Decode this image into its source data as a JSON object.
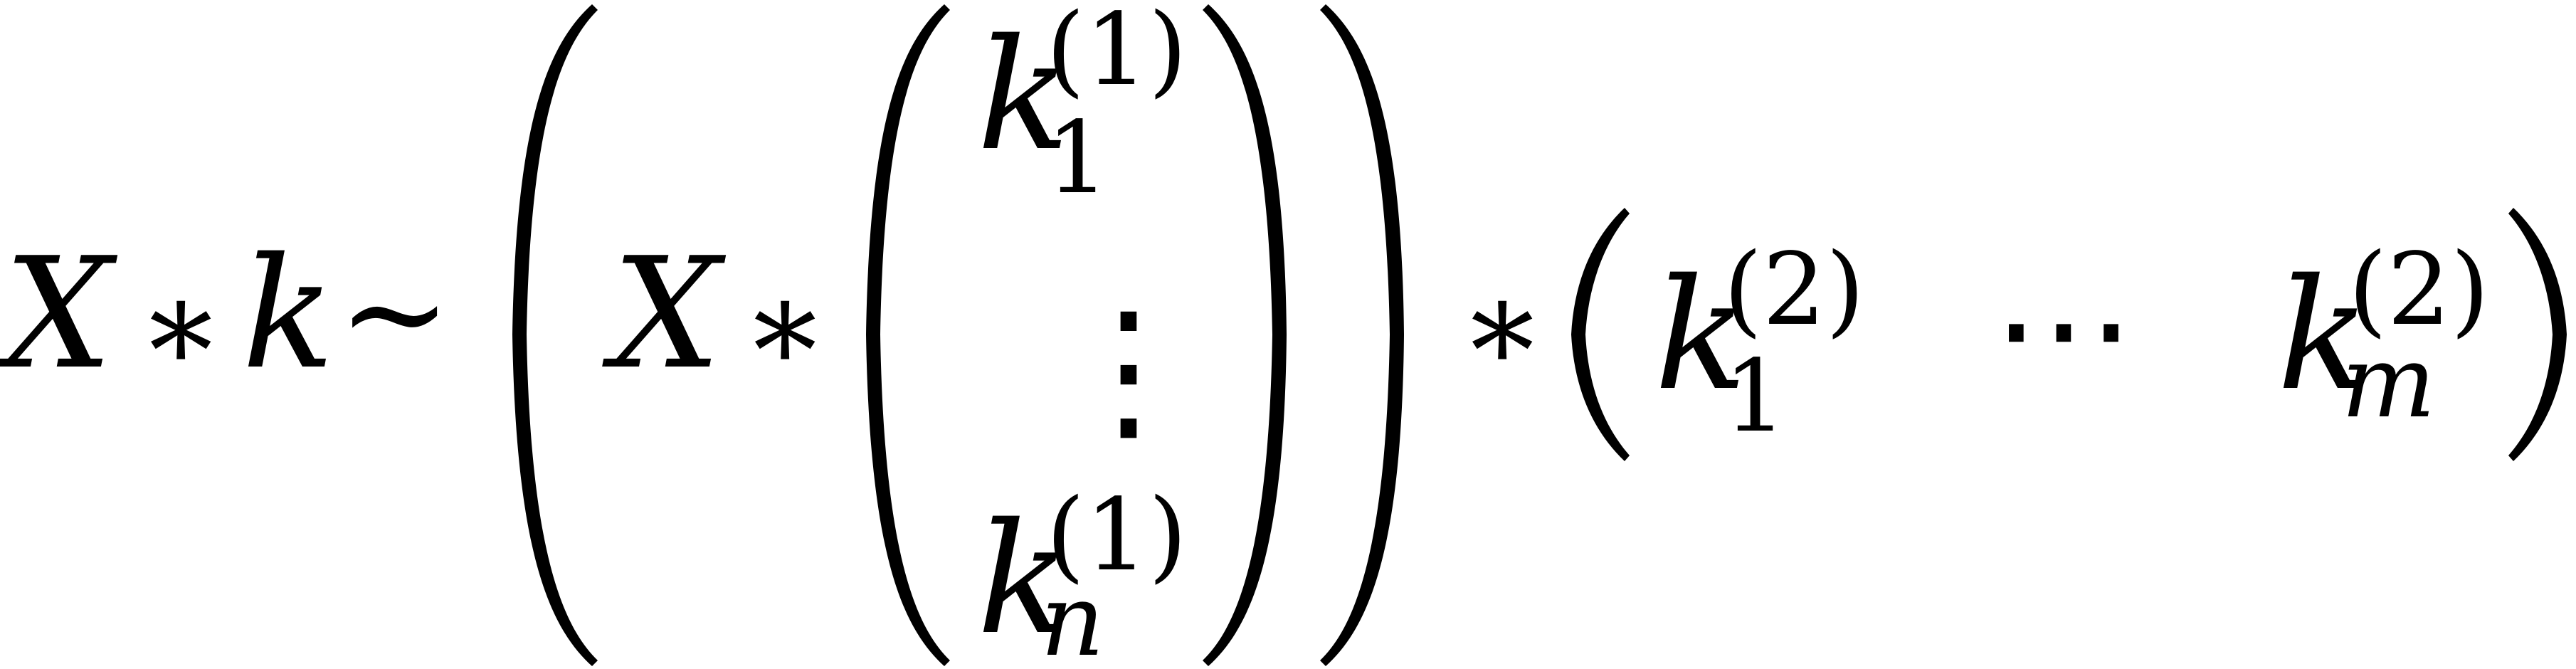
{
  "equation": {
    "lhs": {
      "X": "X",
      "star": "∗",
      "k": "k",
      "sim": "∼"
    },
    "inner": {
      "X": "X",
      "star": "∗"
    },
    "column_vector": {
      "top": {
        "base": "k",
        "sub": "1",
        "sup": "(1)"
      },
      "vdots": "⋮",
      "bottom": {
        "base": "k",
        "sub": "n",
        "sup": "(1)"
      }
    },
    "outer_star": "∗",
    "row_vector": {
      "first": {
        "base": "k",
        "sub": "1",
        "sup": "(2)"
      },
      "cdots": "⋯",
      "last": {
        "base": "k",
        "sub": "m",
        "sup": "(2)"
      }
    }
  }
}
